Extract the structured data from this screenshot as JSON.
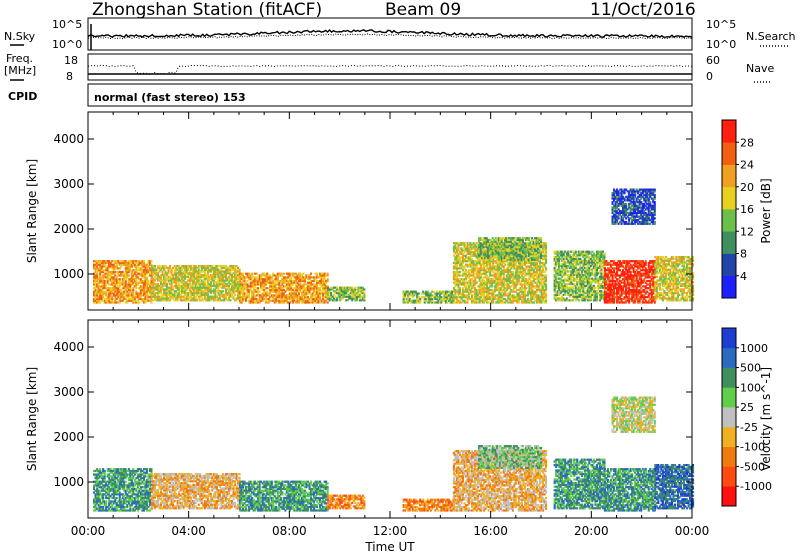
{
  "header": {
    "station": "Zhongshan Station (fitACF)",
    "beam": "Beam 09",
    "date": "11/Oct/2016"
  },
  "nsky_panel": {
    "left_label": "N.Sky",
    "right_label": "N.Search",
    "left_ticks": [
      "10^5",
      "10^0"
    ],
    "right_ticks": [
      "10^5",
      "10^0"
    ]
  },
  "freq_panel": {
    "left_label_1": "Freq.",
    "left_label_2": "[MHz]",
    "right_label": "Nave",
    "left_ticks": [
      "18",
      "8"
    ],
    "right_ticks": [
      "60",
      "0"
    ]
  },
  "cpid": {
    "label": "CPID",
    "mode": "normal (fast stereo) 153"
  },
  "colors": {
    "power_scale": [
      "#1e1eff",
      "#2244aa",
      "#3f8f5f",
      "#6cc04a",
      "#e8d020",
      "#f0a020",
      "#f06010",
      "#ff2010"
    ],
    "velocity_scale": [
      "#ff1010",
      "#ff4a10",
      "#f07a10",
      "#f0b020",
      "#c0c0c0",
      "#5fcf4a",
      "#3f8f5f",
      "#2a6abf",
      "#1e3ecf"
    ]
  },
  "chart_data": [
    {
      "type": "heatmap",
      "name": "power-panel",
      "ylabel": "Slant Range [km]",
      "yticks": [
        "1000",
        "2000",
        "3000",
        "4000"
      ],
      "ylim": [
        200,
        4600
      ],
      "xlim": [
        0,
        24
      ],
      "colorbar_label": "Power [dB]",
      "colorbar_ticks": [
        "28",
        "24",
        "20",
        "16",
        "12",
        "8",
        "4"
      ],
      "regions": [
        {
          "x0": 0.2,
          "x1": 2.5,
          "y0": 350,
          "y1": 1300,
          "level": 5
        },
        {
          "x0": 2.5,
          "x1": 6.0,
          "y0": 400,
          "y1": 1200,
          "level": 4
        },
        {
          "x0": 6.0,
          "x1": 9.5,
          "y0": 350,
          "y1": 1000,
          "level": 5
        },
        {
          "x0": 9.5,
          "x1": 11.0,
          "y0": 400,
          "y1": 700,
          "level": 3
        },
        {
          "x0": 12.5,
          "x1": 14.5,
          "y0": 350,
          "y1": 600,
          "level": 3
        },
        {
          "x0": 14.5,
          "x1": 18.2,
          "y0": 350,
          "y1": 1700,
          "level": 4
        },
        {
          "x0": 15.5,
          "x1": 18.0,
          "y0": 1300,
          "y1": 1800,
          "level": 3
        },
        {
          "x0": 18.5,
          "x1": 20.5,
          "y0": 400,
          "y1": 1500,
          "level": 3
        },
        {
          "x0": 20.5,
          "x1": 22.5,
          "y0": 350,
          "y1": 1300,
          "level": 7
        },
        {
          "x0": 20.8,
          "x1": 22.5,
          "y0": 2100,
          "y1": 2900,
          "level": 1
        },
        {
          "x0": 22.5,
          "x1": 24.0,
          "y0": 400,
          "y1": 1400,
          "level": 4
        }
      ]
    },
    {
      "type": "heatmap",
      "name": "velocity-panel",
      "ylabel": "Slant Range [km]",
      "yticks": [
        "1000",
        "2000",
        "3000",
        "4000"
      ],
      "ylim": [
        200,
        4600
      ],
      "xlim": [
        0,
        24
      ],
      "xticks": [
        "00:00",
        "04:00",
        "08:00",
        "12:00",
        "16:00",
        "20:00",
        "00:00"
      ],
      "xlabel": "Time UT",
      "colorbar_label": "Velocity [m s^-1]",
      "colorbar_ticks": [
        "1000",
        "500",
        "100",
        "25",
        "-25",
        "-100",
        "-500",
        "-1000"
      ],
      "regions": [
        {
          "x0": 0.2,
          "x1": 2.5,
          "y0": 350,
          "y1": 1300,
          "level": 6
        },
        {
          "x0": 2.5,
          "x1": 6.0,
          "y0": 400,
          "y1": 1200,
          "level": 3
        },
        {
          "x0": 6.0,
          "x1": 9.5,
          "y0": 350,
          "y1": 1000,
          "level": 6
        },
        {
          "x0": 9.5,
          "x1": 11.0,
          "y0": 400,
          "y1": 700,
          "level": 2
        },
        {
          "x0": 12.5,
          "x1": 14.5,
          "y0": 350,
          "y1": 600,
          "level": 2
        },
        {
          "x0": 14.5,
          "x1": 18.2,
          "y0": 350,
          "y1": 1700,
          "level": 3
        },
        {
          "x0": 15.5,
          "x1": 18.0,
          "y0": 1300,
          "y1": 1800,
          "level": 5
        },
        {
          "x0": 18.5,
          "x1": 20.5,
          "y0": 400,
          "y1": 1500,
          "level": 6
        },
        {
          "x0": 20.5,
          "x1": 22.5,
          "y0": 350,
          "y1": 1300,
          "level": 6
        },
        {
          "x0": 20.8,
          "x1": 22.5,
          "y0": 2100,
          "y1": 2900,
          "level": 4
        },
        {
          "x0": 22.5,
          "x1": 24.0,
          "y0": 400,
          "y1": 1400,
          "level": 7
        }
      ]
    }
  ]
}
